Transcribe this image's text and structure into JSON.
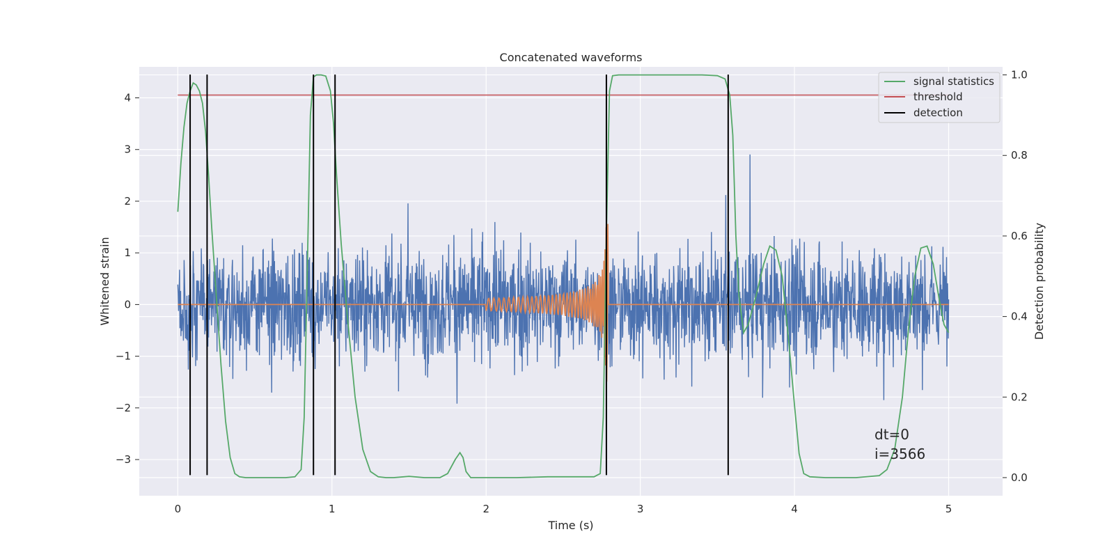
{
  "chart_data": {
    "type": "line",
    "title": "Concatenated waveforms",
    "xlabel": "Time (s)",
    "ylabel": "Whitened strain",
    "y2label": "Detection probability",
    "xlim": [
      -0.25,
      5.35
    ],
    "ylim": [
      -3.7,
      4.6
    ],
    "y2lim": [
      -0.045,
      1.02
    ],
    "xticks": [
      0,
      1,
      2,
      3,
      4,
      5
    ],
    "xtick_labels": [
      "0",
      "1",
      "2",
      "3",
      "4",
      "5"
    ],
    "yticks": [
      -3,
      -2,
      -1,
      0,
      1,
      2,
      3,
      4
    ],
    "ytick_labels": [
      "−3",
      "−2",
      "−1",
      "0",
      "1",
      "2",
      "3",
      "4"
    ],
    "y2ticks": [
      0.0,
      0.2,
      0.4,
      0.6,
      0.8,
      1.0
    ],
    "y2tick_labels": [
      "0.0",
      "0.2",
      "0.4",
      "0.6",
      "0.8",
      "1.0"
    ],
    "grid": true,
    "legend_position": "top-right",
    "colors": {
      "background": "#eaeaf2",
      "grid": "#ffffff",
      "strain": "#4c72b0",
      "template": "#dd8452",
      "signal_statistics": "#55a868",
      "threshold": "#c44e52",
      "detection": "#000000"
    },
    "series": [
      {
        "name": "signal statistics",
        "axis": "right",
        "x": [
          0,
          0.02,
          0.04,
          0.06,
          0.08,
          0.1,
          0.12,
          0.14,
          0.16,
          0.18,
          0.2,
          0.22,
          0.25,
          0.28,
          0.31,
          0.34,
          0.37,
          0.4,
          0.44,
          0.5,
          0.6,
          0.7,
          0.76,
          0.8,
          0.82,
          0.84,
          0.86,
          0.88,
          0.9,
          0.93,
          0.96,
          0.99,
          1.01,
          1.03,
          1.06,
          1.1,
          1.15,
          1.2,
          1.25,
          1.3,
          1.35,
          1.4,
          1.5,
          1.6,
          1.7,
          1.75,
          1.8,
          1.83,
          1.85,
          1.87,
          1.9,
          1.95,
          2.0,
          2.2,
          2.4,
          2.6,
          2.7,
          2.74,
          2.76,
          2.78,
          2.8,
          2.82,
          2.86,
          2.9,
          3.0,
          3.2,
          3.4,
          3.5,
          3.55,
          3.58,
          3.6,
          3.62,
          3.64,
          3.67,
          3.7,
          3.75,
          3.8,
          3.84,
          3.88,
          3.92,
          3.96,
          4.0,
          4.03,
          4.06,
          4.1,
          4.2,
          4.4,
          4.55,
          4.6,
          4.65,
          4.7,
          4.74,
          4.78,
          4.82,
          4.86,
          4.9,
          4.94,
          4.97,
          5.0
        ],
        "y": [
          0.66,
          0.78,
          0.87,
          0.93,
          0.96,
          0.98,
          0.975,
          0.96,
          0.93,
          0.86,
          0.75,
          0.62,
          0.45,
          0.28,
          0.14,
          0.05,
          0.01,
          0.002,
          0.0,
          0.0,
          0.0,
          0.0,
          0.002,
          0.02,
          0.15,
          0.52,
          0.9,
          0.995,
          1.0,
          1.0,
          0.997,
          0.96,
          0.88,
          0.75,
          0.58,
          0.4,
          0.2,
          0.07,
          0.015,
          0.002,
          0.0,
          0.0,
          0.003,
          0.0,
          0.0,
          0.01,
          0.045,
          0.062,
          0.05,
          0.015,
          0.0,
          0.0,
          0.0,
          0.0,
          0.002,
          0.002,
          0.002,
          0.01,
          0.15,
          0.6,
          0.96,
          0.998,
          1.0,
          1.0,
          1.0,
          1.0,
          1.0,
          0.998,
          0.99,
          0.95,
          0.85,
          0.6,
          0.45,
          0.36,
          0.38,
          0.45,
          0.53,
          0.575,
          0.565,
          0.5,
          0.35,
          0.18,
          0.06,
          0.01,
          0.002,
          0.0,
          0.0,
          0.005,
          0.02,
          0.07,
          0.2,
          0.37,
          0.5,
          0.57,
          0.575,
          0.53,
          0.44,
          0.38,
          0.36
        ]
      },
      {
        "name": "threshold",
        "axis": "right",
        "x": [
          0,
          5
        ],
        "y": [
          0.95,
          0.95
        ]
      },
      {
        "name": "detection",
        "axis": "left",
        "x": [
          0.08,
          0.19,
          0.88,
          1.02,
          2.78,
          3.57
        ]
      }
    ]
  },
  "annotations": [
    "dt=0",
    "i=3566"
  ]
}
